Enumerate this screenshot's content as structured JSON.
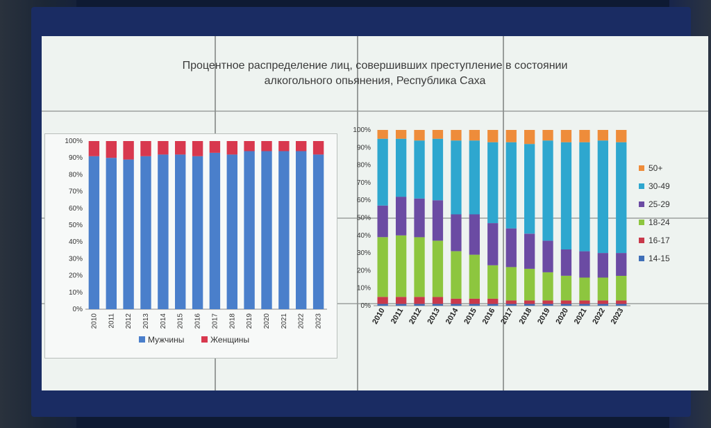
{
  "title_line1": "Процентное распределение лиц, совершивших преступление в состоянии",
  "title_line2": "алкогольного опьянения, Республика Саха",
  "chart_data": [
    {
      "type": "bar",
      "stacked": true,
      "categories": [
        "2010",
        "2011",
        "2012",
        "2013",
        "2014",
        "2015",
        "2016",
        "2017",
        "2018",
        "2019",
        "2020",
        "2021",
        "2022",
        "2023"
      ],
      "series": [
        {
          "name": "Мужчины",
          "color": "#4a7fcb",
          "values": [
            91,
            90,
            89,
            91,
            92,
            92,
            91,
            93,
            92,
            94,
            94,
            94,
            94,
            92
          ]
        },
        {
          "name": "Женщины",
          "color": "#d8384e",
          "values": [
            9,
            10,
            11,
            9,
            8,
            8,
            9,
            7,
            8,
            6,
            6,
            6,
            6,
            8
          ]
        }
      ],
      "yticks": [
        "0%",
        "10%",
        "20%",
        "30%",
        "40%",
        "50%",
        "60%",
        "70%",
        "80%",
        "90%",
        "100%"
      ],
      "ylim": [
        0,
        100
      ]
    },
    {
      "type": "bar",
      "stacked": true,
      "categories": [
        "2010",
        "2011",
        "2012",
        "2013",
        "2014",
        "2015",
        "2016",
        "2017",
        "2018",
        "2019",
        "2020",
        "2021",
        "2022",
        "2023"
      ],
      "series": [
        {
          "name": "14-15",
          "color": "#3f6fb8",
          "values": [
            1,
            1,
            1,
            1,
            1,
            1,
            1,
            1,
            1,
            1,
            1,
            1,
            1,
            1
          ]
        },
        {
          "name": "16-17",
          "color": "#c9394b",
          "values": [
            4,
            4,
            4,
            4,
            3,
            3,
            3,
            2,
            2,
            2,
            2,
            2,
            2,
            2
          ]
        },
        {
          "name": "18-24",
          "color": "#8dc63f",
          "values": [
            34,
            35,
            34,
            32,
            27,
            25,
            19,
            19,
            18,
            16,
            14,
            13,
            13,
            14
          ]
        },
        {
          "name": "25-29",
          "color": "#6b4ba3",
          "values": [
            18,
            22,
            22,
            23,
            21,
            23,
            24,
            22,
            20,
            18,
            15,
            15,
            14,
            13
          ]
        },
        {
          "name": "30-49",
          "color": "#2ea7cf",
          "values": [
            38,
            33,
            33,
            35,
            42,
            42,
            46,
            49,
            51,
            57,
            61,
            62,
            64,
            63
          ]
        },
        {
          "name": "50+",
          "color": "#ee8c3a",
          "values": [
            5,
            5,
            6,
            5,
            6,
            6,
            7,
            7,
            8,
            6,
            7,
            7,
            6,
            7
          ]
        }
      ],
      "yticks": [
        "0%",
        "10%",
        "20%",
        "30%",
        "40%",
        "50%",
        "60%",
        "70%",
        "80%",
        "90%",
        "100%"
      ],
      "ylim": [
        0,
        100
      ]
    }
  ]
}
